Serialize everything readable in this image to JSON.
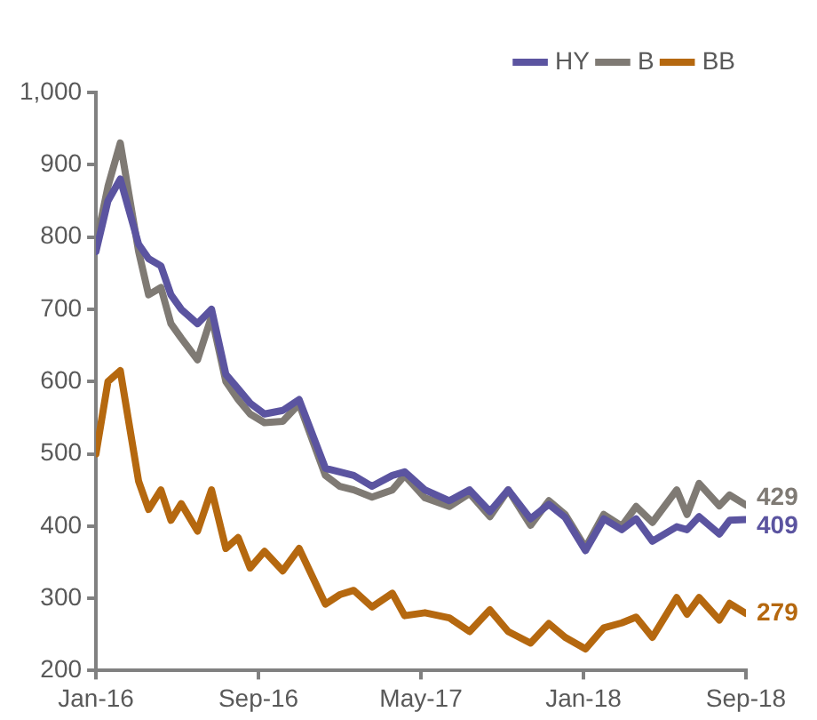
{
  "chart_data": {
    "type": "line",
    "x": [
      "2016-01-01",
      "2016-01-19",
      "2016-02-07",
      "2016-03-04",
      "2016-03-19",
      "2016-04-07",
      "2016-04-22",
      "2016-05-07",
      "2016-06-01",
      "2016-06-22",
      "2016-07-13",
      "2016-08-01",
      "2016-08-19",
      "2016-09-10",
      "2016-10-07",
      "2016-11-01",
      "2016-12-10",
      "2017-01-01",
      "2017-01-22",
      "2017-02-19",
      "2017-03-19",
      "2017-04-07",
      "2017-05-07",
      "2017-06-13",
      "2017-07-13",
      "2017-08-13",
      "2017-09-10",
      "2017-10-13",
      "2017-11-10",
      "2017-12-04",
      "2018-01-04",
      "2018-02-01",
      "2018-02-28",
      "2018-03-19",
      "2018-04-13",
      "2018-05-19",
      "2018-06-04",
      "2018-06-22",
      "2018-07-22",
      "2018-08-07",
      "2018-09-01"
    ],
    "series": [
      {
        "name": "HY",
        "color": "#5b54a0",
        "values": [
          780,
          850,
          880,
          790,
          770,
          760,
          720,
          700,
          680,
          700,
          610,
          590,
          570,
          555,
          560,
          575,
          480,
          475,
          470,
          455,
          470,
          475,
          450,
          435,
          450,
          420,
          450,
          410,
          430,
          412,
          366,
          410,
          395,
          410,
          379,
          399,
          395,
          413,
          389,
          408,
          409
        ]
      },
      {
        "name": "B",
        "color": "#7f7a74",
        "values": [
          790,
          870,
          930,
          780,
          720,
          730,
          680,
          660,
          630,
          690,
          600,
          575,
          555,
          543,
          545,
          569,
          470,
          455,
          450,
          440,
          450,
          470,
          439,
          427,
          445,
          413,
          450,
          401,
          435,
          416,
          370,
          416,
          400,
          427,
          405,
          450,
          416,
          459,
          428,
          443,
          429
        ]
      },
      {
        "name": "BB",
        "color": "#b5680f",
        "values": [
          500,
          600,
          615,
          462,
          423,
          450,
          408,
          431,
          393,
          450,
          369,
          384,
          342,
          365,
          338,
          369,
          292,
          305,
          311,
          288,
          307,
          276,
          280,
          273,
          254,
          284,
          254,
          238,
          265,
          246,
          230,
          259,
          266,
          274,
          246,
          301,
          278,
          301,
          270,
          293,
          279
        ]
      }
    ],
    "xlim": [
      "2016-01",
      "2018-09"
    ],
    "xticks": [
      {
        "value": "2016-01",
        "label": "Jan-16"
      },
      {
        "value": "2016-09",
        "label": "Sep-16"
      },
      {
        "value": "2017-05",
        "label": "May-17"
      },
      {
        "value": "2018-01",
        "label": "Jan-18"
      },
      {
        "value": "2018-09",
        "label": "Sep-18"
      }
    ],
    "ylim": [
      200,
      1000
    ],
    "yticks": [
      200,
      300,
      400,
      500,
      600,
      700,
      800,
      900,
      {
        "value": 1000,
        "label": "1,000"
      }
    ],
    "annotations": [
      {
        "text": "429",
        "x": "2018-09-01",
        "y": 429
      },
      {
        "text": "409",
        "x": "2018-09-01",
        "y": 409
      },
      {
        "text": "279",
        "x": "2018-09-01",
        "y": 279
      }
    ],
    "legend": "top right",
    "grid": false,
    "marker": "none",
    "line_style": "solid"
  }
}
